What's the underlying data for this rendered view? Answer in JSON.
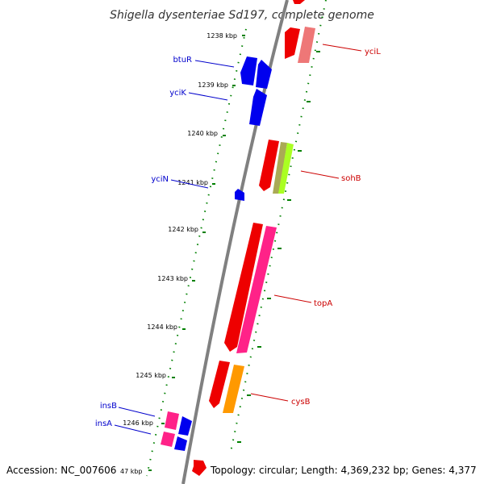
{
  "title": "Shigella dysenteriae Sd197, complete genome",
  "footer": {
    "accession": "Accession: NC_007606",
    "summary": "Topology: circular; Length: 4,369,232 bp; Genes: 4,377",
    "partial_tick": "47 kbp"
  },
  "colors": {
    "backbone": "#808080",
    "tick": "#008000",
    "label_left": "#0000cc",
    "label_right": "#cc0000",
    "gene_blue": "#0000ee",
    "gene_red": "#ee0000",
    "gene_salmon": "#ee7777",
    "gene_olive": "#aaaa55",
    "gene_lime": "#aaff22",
    "gene_pink": "#ff2288",
    "gene_orange": "#ff9900"
  },
  "kbp_ticks": [
    "1238 kbp",
    "1239 kbp",
    "1240 kbp",
    "1241 kbp",
    "1242 kbp",
    "1243 kbp",
    "1244 kbp",
    "1245 kbp",
    "1246 kbp"
  ],
  "genes_left": [
    "btuR",
    "yciK",
    "yciN",
    "insB",
    "insA"
  ],
  "genes_right": [
    "yciL",
    "sohB",
    "topA",
    "cysB"
  ]
}
